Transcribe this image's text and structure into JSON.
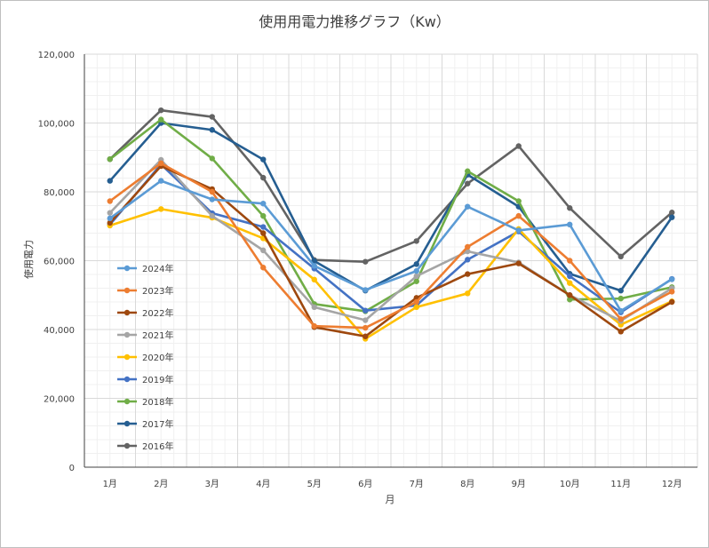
{
  "chart_data": {
    "type": "line",
    "title": "使用用電力推移グラフ（Kw）",
    "xlabel": "月",
    "ylabel": "使用電力",
    "categories": [
      "1月",
      "2月",
      "3月",
      "4月",
      "5月",
      "6月",
      "7月",
      "8月",
      "9月",
      "10月",
      "11月",
      "12月"
    ],
    "ylim": [
      0,
      120000
    ],
    "yticks": [
      0,
      20000,
      40000,
      60000,
      80000,
      100000,
      120000
    ],
    "ytick_labels": [
      "0",
      "20,000",
      "40,000",
      "60,000",
      "80,000",
      "100,000",
      "120,000"
    ],
    "grid": true,
    "legend_position": "left inside",
    "series": [
      {
        "name": "2024年",
        "color": "#5b9bd5",
        "values": [
          72300,
          83200,
          77800,
          76600,
          58500,
          51500,
          57000,
          75700,
          68800,
          70500,
          45400,
          54600
        ]
      },
      {
        "name": "2023年",
        "color": "#ed7d31",
        "values": [
          77300,
          88300,
          80000,
          58000,
          41000,
          40500,
          48000,
          64000,
          73000,
          60000,
          43000,
          51000
        ]
      },
      {
        "name": "2022年",
        "color": "#9e480e",
        "values": [
          71000,
          87500,
          80800,
          68000,
          40700,
          38000,
          49200,
          56100,
          59200,
          50000,
          39400,
          48000
        ]
      },
      {
        "name": "2021年",
        "color": "#a5a5a5",
        "values": [
          73900,
          89300,
          73000,
          63000,
          46500,
          42700,
          55500,
          62700,
          59500,
          50000,
          42500,
          52000
        ]
      },
      {
        "name": "2020年",
        "color": "#ffc000",
        "values": [
          70200,
          75000,
          72500,
          66500,
          54500,
          37300,
          46500,
          50500,
          69200,
          53500,
          41400,
          48200
        ]
      },
      {
        "name": "2019年",
        "color": "#4472c4",
        "values": [
          70500,
          88000,
          73800,
          69800,
          57700,
          45500,
          47000,
          60300,
          68500,
          55500,
          45000,
          54700
        ]
      },
      {
        "name": "2018年",
        "color": "#70ad47",
        "values": [
          89500,
          101000,
          89700,
          73000,
          47400,
          45300,
          54000,
          86000,
          77300,
          48700,
          49000,
          52300
        ]
      },
      {
        "name": "2017年",
        "color": "#255e91",
        "values": [
          83200,
          100000,
          98000,
          89400,
          59900,
          51300,
          59000,
          85000,
          75700,
          56200,
          51300,
          72600
        ]
      },
      {
        "name": "2016年",
        "color": "#636363",
        "values": [
          89500,
          103700,
          101800,
          84100,
          60200,
          59700,
          65700,
          82400,
          93300,
          75300,
          61200,
          74000
        ]
      }
    ]
  }
}
